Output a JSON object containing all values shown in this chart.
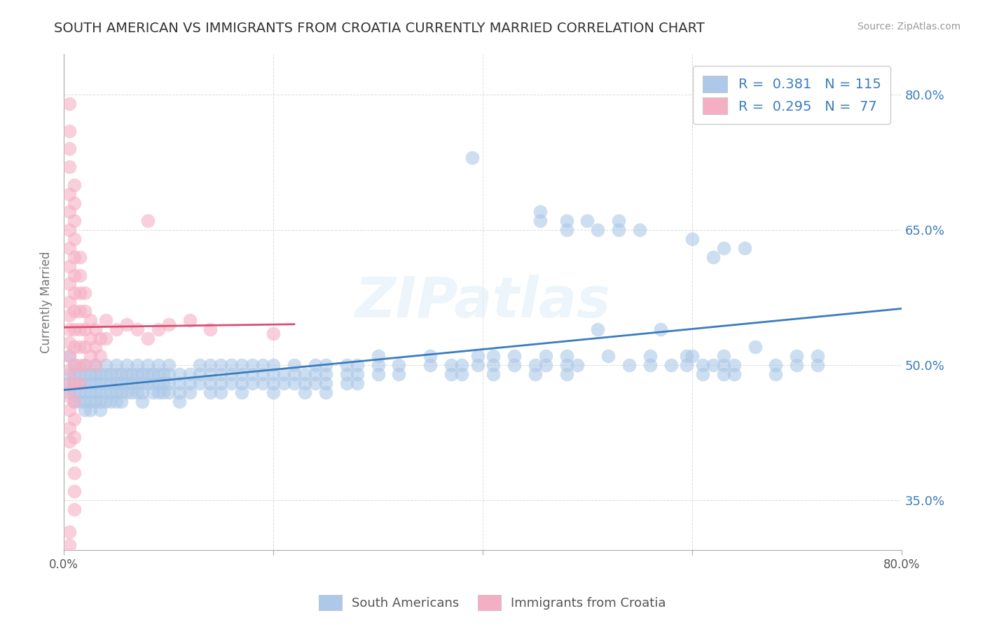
{
  "title": "SOUTH AMERICAN VS IMMIGRANTS FROM CROATIA CURRENTLY MARRIED CORRELATION CHART",
  "source": "Source: ZipAtlas.com",
  "ylabel": "Currently Married",
  "watermark": "ZIPatlas",
  "xlim": [
    0.0,
    0.8
  ],
  "ylim": [
    0.295,
    0.845
  ],
  "ytick_positions": [
    0.35,
    0.5,
    0.65,
    0.8
  ],
  "ytick_labels": [
    "35.0%",
    "50.0%",
    "65.0%",
    "80.0%"
  ],
  "blue_R": 0.381,
  "blue_N": 115,
  "pink_R": 0.295,
  "pink_N": 77,
  "blue_color": "#adc8e8",
  "pink_color": "#f5afc4",
  "blue_line_color": "#3a7dbf",
  "pink_line_color": "#d94f72",
  "title_color": "#333333",
  "legend_text_color": "#3a7dbf",
  "background_color": "#ffffff",
  "grid_color": "#cccccc",
  "right_ytick_color": "#3a7dbf",
  "blue_points": [
    [
      0.005,
      0.49
    ],
    [
      0.005,
      0.51
    ],
    [
      0.005,
      0.48
    ],
    [
      0.005,
      0.47
    ],
    [
      0.01,
      0.5
    ],
    [
      0.01,
      0.49
    ],
    [
      0.01,
      0.48
    ],
    [
      0.01,
      0.47
    ],
    [
      0.01,
      0.46
    ],
    [
      0.015,
      0.49
    ],
    [
      0.015,
      0.48
    ],
    [
      0.015,
      0.47
    ],
    [
      0.015,
      0.46
    ],
    [
      0.02,
      0.5
    ],
    [
      0.02,
      0.49
    ],
    [
      0.02,
      0.48
    ],
    [
      0.02,
      0.47
    ],
    [
      0.02,
      0.46
    ],
    [
      0.02,
      0.45
    ],
    [
      0.025,
      0.49
    ],
    [
      0.025,
      0.48
    ],
    [
      0.025,
      0.47
    ],
    [
      0.025,
      0.46
    ],
    [
      0.025,
      0.45
    ],
    [
      0.03,
      0.5
    ],
    [
      0.03,
      0.49
    ],
    [
      0.03,
      0.48
    ],
    [
      0.03,
      0.47
    ],
    [
      0.03,
      0.46
    ],
    [
      0.035,
      0.49
    ],
    [
      0.035,
      0.48
    ],
    [
      0.035,
      0.47
    ],
    [
      0.035,
      0.46
    ],
    [
      0.035,
      0.45
    ],
    [
      0.04,
      0.5
    ],
    [
      0.04,
      0.49
    ],
    [
      0.04,
      0.48
    ],
    [
      0.04,
      0.47
    ],
    [
      0.04,
      0.46
    ],
    [
      0.045,
      0.49
    ],
    [
      0.045,
      0.48
    ],
    [
      0.045,
      0.47
    ],
    [
      0.045,
      0.46
    ],
    [
      0.05,
      0.5
    ],
    [
      0.05,
      0.49
    ],
    [
      0.05,
      0.48
    ],
    [
      0.05,
      0.47
    ],
    [
      0.05,
      0.46
    ],
    [
      0.055,
      0.49
    ],
    [
      0.055,
      0.48
    ],
    [
      0.055,
      0.47
    ],
    [
      0.055,
      0.46
    ],
    [
      0.06,
      0.5
    ],
    [
      0.06,
      0.49
    ],
    [
      0.06,
      0.48
    ],
    [
      0.06,
      0.47
    ],
    [
      0.065,
      0.49
    ],
    [
      0.065,
      0.48
    ],
    [
      0.065,
      0.47
    ],
    [
      0.07,
      0.5
    ],
    [
      0.07,
      0.49
    ],
    [
      0.07,
      0.48
    ],
    [
      0.07,
      0.47
    ],
    [
      0.075,
      0.49
    ],
    [
      0.075,
      0.48
    ],
    [
      0.075,
      0.47
    ],
    [
      0.075,
      0.46
    ],
    [
      0.08,
      0.5
    ],
    [
      0.08,
      0.49
    ],
    [
      0.08,
      0.48
    ],
    [
      0.085,
      0.49
    ],
    [
      0.085,
      0.48
    ],
    [
      0.085,
      0.47
    ],
    [
      0.09,
      0.5
    ],
    [
      0.09,
      0.49
    ],
    [
      0.09,
      0.48
    ],
    [
      0.09,
      0.47
    ],
    [
      0.095,
      0.49
    ],
    [
      0.095,
      0.48
    ],
    [
      0.095,
      0.47
    ],
    [
      0.1,
      0.5
    ],
    [
      0.1,
      0.49
    ],
    [
      0.1,
      0.48
    ],
    [
      0.1,
      0.47
    ],
    [
      0.11,
      0.49
    ],
    [
      0.11,
      0.48
    ],
    [
      0.11,
      0.47
    ],
    [
      0.11,
      0.46
    ],
    [
      0.12,
      0.49
    ],
    [
      0.12,
      0.48
    ],
    [
      0.12,
      0.47
    ],
    [
      0.13,
      0.5
    ],
    [
      0.13,
      0.49
    ],
    [
      0.13,
      0.48
    ],
    [
      0.14,
      0.5
    ],
    [
      0.14,
      0.49
    ],
    [
      0.14,
      0.48
    ],
    [
      0.14,
      0.47
    ],
    [
      0.15,
      0.5
    ],
    [
      0.15,
      0.49
    ],
    [
      0.15,
      0.48
    ],
    [
      0.15,
      0.47
    ],
    [
      0.16,
      0.5
    ],
    [
      0.16,
      0.49
    ],
    [
      0.16,
      0.48
    ],
    [
      0.17,
      0.5
    ],
    [
      0.17,
      0.49
    ],
    [
      0.17,
      0.48
    ],
    [
      0.17,
      0.47
    ],
    [
      0.18,
      0.5
    ],
    [
      0.18,
      0.49
    ],
    [
      0.18,
      0.48
    ],
    [
      0.19,
      0.5
    ],
    [
      0.19,
      0.49
    ],
    [
      0.19,
      0.48
    ],
    [
      0.2,
      0.5
    ],
    [
      0.2,
      0.49
    ],
    [
      0.2,
      0.48
    ],
    [
      0.2,
      0.47
    ],
    [
      0.21,
      0.49
    ],
    [
      0.21,
      0.48
    ],
    [
      0.22,
      0.5
    ],
    [
      0.22,
      0.49
    ],
    [
      0.22,
      0.48
    ],
    [
      0.23,
      0.49
    ],
    [
      0.23,
      0.48
    ],
    [
      0.23,
      0.47
    ],
    [
      0.24,
      0.5
    ],
    [
      0.24,
      0.49
    ],
    [
      0.24,
      0.48
    ],
    [
      0.25,
      0.5
    ],
    [
      0.25,
      0.49
    ],
    [
      0.25,
      0.48
    ],
    [
      0.25,
      0.47
    ],
    [
      0.27,
      0.5
    ],
    [
      0.27,
      0.49
    ],
    [
      0.27,
      0.48
    ],
    [
      0.28,
      0.5
    ],
    [
      0.28,
      0.49
    ],
    [
      0.28,
      0.48
    ],
    [
      0.3,
      0.51
    ],
    [
      0.3,
      0.5
    ],
    [
      0.3,
      0.49
    ],
    [
      0.32,
      0.5
    ],
    [
      0.32,
      0.49
    ],
    [
      0.35,
      0.51
    ],
    [
      0.35,
      0.5
    ],
    [
      0.37,
      0.5
    ],
    [
      0.37,
      0.49
    ],
    [
      0.38,
      0.5
    ],
    [
      0.38,
      0.49
    ],
    [
      0.395,
      0.51
    ],
    [
      0.395,
      0.5
    ],
    [
      0.41,
      0.51
    ],
    [
      0.41,
      0.5
    ],
    [
      0.41,
      0.49
    ],
    [
      0.43,
      0.51
    ],
    [
      0.43,
      0.5
    ],
    [
      0.45,
      0.5
    ],
    [
      0.45,
      0.49
    ],
    [
      0.46,
      0.51
    ],
    [
      0.46,
      0.5
    ],
    [
      0.48,
      0.51
    ],
    [
      0.48,
      0.5
    ],
    [
      0.48,
      0.49
    ],
    [
      0.49,
      0.5
    ],
    [
      0.51,
      0.54
    ],
    [
      0.52,
      0.51
    ],
    [
      0.54,
      0.5
    ],
    [
      0.56,
      0.51
    ],
    [
      0.56,
      0.5
    ],
    [
      0.57,
      0.54
    ],
    [
      0.58,
      0.5
    ],
    [
      0.595,
      0.51
    ],
    [
      0.595,
      0.5
    ],
    [
      0.6,
      0.51
    ],
    [
      0.61,
      0.5
    ],
    [
      0.61,
      0.49
    ],
    [
      0.62,
      0.5
    ],
    [
      0.63,
      0.51
    ],
    [
      0.63,
      0.5
    ],
    [
      0.63,
      0.49
    ],
    [
      0.64,
      0.5
    ],
    [
      0.64,
      0.49
    ],
    [
      0.66,
      0.52
    ],
    [
      0.68,
      0.5
    ],
    [
      0.68,
      0.49
    ],
    [
      0.7,
      0.51
    ],
    [
      0.7,
      0.5
    ],
    [
      0.72,
      0.51
    ],
    [
      0.72,
      0.5
    ],
    [
      0.39,
      0.73
    ],
    [
      0.455,
      0.67
    ],
    [
      0.455,
      0.66
    ],
    [
      0.48,
      0.66
    ],
    [
      0.48,
      0.65
    ],
    [
      0.5,
      0.66
    ],
    [
      0.51,
      0.65
    ],
    [
      0.53,
      0.66
    ],
    [
      0.53,
      0.65
    ],
    [
      0.55,
      0.65
    ],
    [
      0.6,
      0.64
    ],
    [
      0.62,
      0.62
    ],
    [
      0.63,
      0.63
    ],
    [
      0.65,
      0.63
    ]
  ],
  "pink_points": [
    [
      0.005,
      0.76
    ],
    [
      0.005,
      0.74
    ],
    [
      0.005,
      0.72
    ],
    [
      0.005,
      0.69
    ],
    [
      0.005,
      0.67
    ],
    [
      0.005,
      0.65
    ],
    [
      0.005,
      0.63
    ],
    [
      0.005,
      0.61
    ],
    [
      0.005,
      0.59
    ],
    [
      0.005,
      0.57
    ],
    [
      0.005,
      0.555
    ],
    [
      0.005,
      0.54
    ],
    [
      0.005,
      0.525
    ],
    [
      0.005,
      0.51
    ],
    [
      0.005,
      0.495
    ],
    [
      0.005,
      0.48
    ],
    [
      0.005,
      0.465
    ],
    [
      0.005,
      0.45
    ],
    [
      0.005,
      0.43
    ],
    [
      0.005,
      0.415
    ],
    [
      0.01,
      0.7
    ],
    [
      0.01,
      0.68
    ],
    [
      0.01,
      0.66
    ],
    [
      0.01,
      0.64
    ],
    [
      0.01,
      0.62
    ],
    [
      0.01,
      0.6
    ],
    [
      0.01,
      0.58
    ],
    [
      0.01,
      0.56
    ],
    [
      0.01,
      0.54
    ],
    [
      0.01,
      0.52
    ],
    [
      0.01,
      0.5
    ],
    [
      0.01,
      0.48
    ],
    [
      0.01,
      0.46
    ],
    [
      0.01,
      0.44
    ],
    [
      0.01,
      0.42
    ],
    [
      0.01,
      0.4
    ],
    [
      0.01,
      0.38
    ],
    [
      0.01,
      0.36
    ],
    [
      0.01,
      0.34
    ],
    [
      0.015,
      0.62
    ],
    [
      0.015,
      0.6
    ],
    [
      0.015,
      0.58
    ],
    [
      0.015,
      0.56
    ],
    [
      0.015,
      0.54
    ],
    [
      0.015,
      0.52
    ],
    [
      0.015,
      0.5
    ],
    [
      0.015,
      0.48
    ],
    [
      0.02,
      0.58
    ],
    [
      0.02,
      0.56
    ],
    [
      0.02,
      0.54
    ],
    [
      0.02,
      0.52
    ],
    [
      0.02,
      0.5
    ],
    [
      0.025,
      0.55
    ],
    [
      0.025,
      0.53
    ],
    [
      0.025,
      0.51
    ],
    [
      0.03,
      0.54
    ],
    [
      0.03,
      0.52
    ],
    [
      0.03,
      0.5
    ],
    [
      0.035,
      0.53
    ],
    [
      0.035,
      0.51
    ],
    [
      0.04,
      0.55
    ],
    [
      0.04,
      0.53
    ],
    [
      0.05,
      0.54
    ],
    [
      0.06,
      0.545
    ],
    [
      0.07,
      0.54
    ],
    [
      0.08,
      0.53
    ],
    [
      0.09,
      0.54
    ],
    [
      0.1,
      0.545
    ],
    [
      0.12,
      0.55
    ],
    [
      0.14,
      0.54
    ],
    [
      0.2,
      0.535
    ],
    [
      0.005,
      0.79
    ],
    [
      0.08,
      0.66
    ],
    [
      0.005,
      0.315
    ],
    [
      0.005,
      0.3
    ]
  ]
}
